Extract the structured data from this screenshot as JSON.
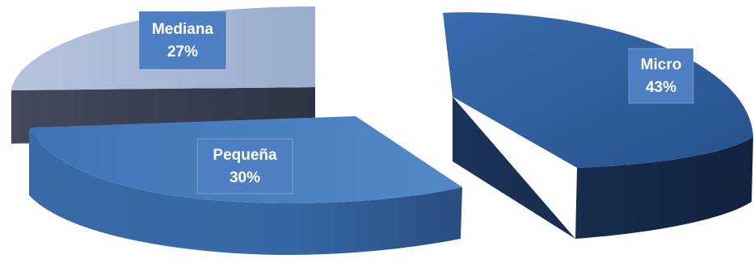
{
  "chart_data": {
    "type": "pie",
    "style": "3d-exploded",
    "title": "",
    "legend": "none",
    "slices": [
      {
        "name": "Micro",
        "value": 43,
        "label": "43%",
        "color": "#2f5f9e"
      },
      {
        "name": "Pequeña",
        "value": 30,
        "label": "30%",
        "color": "#4a7fc0"
      },
      {
        "name": "Mediana",
        "value": 27,
        "label": "27%",
        "color": "#a3b4d4"
      }
    ]
  },
  "colors": {
    "micro_top": "#2f5f9e",
    "micro_side": "#172a4a",
    "pequena_top": "#4a7fc0",
    "pequena_side": "#3d6dab",
    "mediana_top": "#a3b4d4",
    "mediana_side": "#3a4052",
    "label_bg": "#4f7fc3"
  }
}
